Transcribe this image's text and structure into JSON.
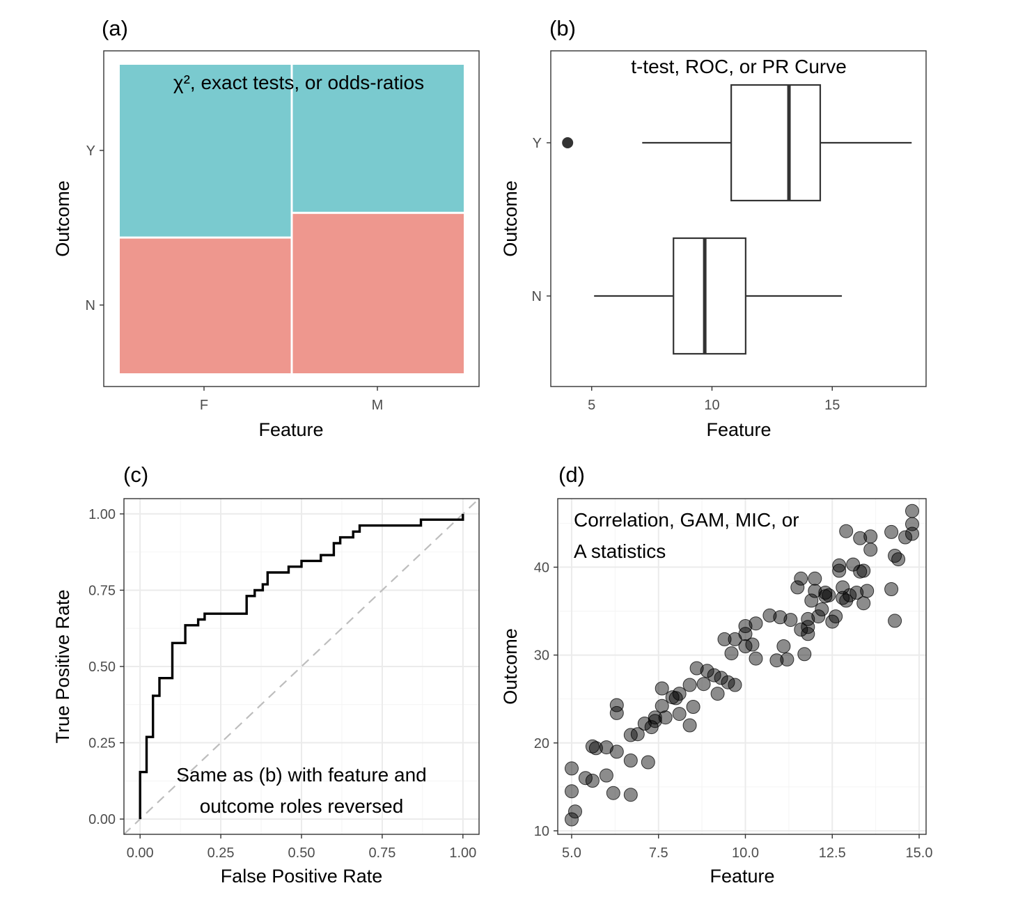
{
  "chart_data": [
    {
      "panel": "(a)",
      "type": "mosaic",
      "annotation": "χ², exact tests, or odds-ratios",
      "xlabel": "Feature",
      "ylabel": "Outcome",
      "categories": [
        "F",
        "M"
      ],
      "outcome_levels": [
        "N",
        "Y"
      ],
      "column_widths": [
        0.5,
        0.5
      ],
      "proportions": [
        {
          "feature": "F",
          "N": 0.44,
          "Y": 0.56
        },
        {
          "feature": "M",
          "N": 0.52,
          "Y": 0.48
        }
      ],
      "colors": {
        "N": "#ee978e",
        "Y": "#7acacf"
      }
    },
    {
      "panel": "(b)",
      "type": "boxplot",
      "annotation": "t-test, ROC, or PR Curve",
      "xlabel": "Feature",
      "ylabel": "Outcome",
      "xticks": [
        5,
        10,
        15
      ],
      "xlim": [
        3.3,
        18.9
      ],
      "boxes": [
        {
          "group": "N",
          "whisker_low": 5.1,
          "q1": 8.4,
          "median": 9.7,
          "q3": 11.4,
          "whisker_high": 15.4,
          "outliers": []
        },
        {
          "group": "Y",
          "whisker_low": 7.1,
          "q1": 10.8,
          "median": 13.2,
          "q3": 14.5,
          "whisker_high": 18.3,
          "outliers": [
            4.0
          ]
        }
      ]
    },
    {
      "panel": "(c)",
      "type": "line",
      "annotation_lines": [
        "Same as (b) with feature and",
        "outcome roles reversed"
      ],
      "xlabel": "False Positive Rate",
      "ylabel": "True Positive Rate",
      "xlim": [
        -0.05,
        1.05
      ],
      "ylim": [
        -0.05,
        1.05
      ],
      "xticks": [
        "0.00",
        "0.25",
        "0.50",
        "0.75",
        "1.00"
      ],
      "yticks": [
        "0.00",
        "0.25",
        "0.50",
        "0.75",
        "1.00"
      ],
      "reference_line": "diagonal dashed",
      "roc_steps": [
        [
          0.0,
          0.0
        ],
        [
          0.0,
          0.154
        ],
        [
          0.02,
          0.154
        ],
        [
          0.02,
          0.269
        ],
        [
          0.04,
          0.269
        ],
        [
          0.04,
          0.404
        ],
        [
          0.06,
          0.404
        ],
        [
          0.06,
          0.462
        ],
        [
          0.1,
          0.462
        ],
        [
          0.1,
          0.577
        ],
        [
          0.14,
          0.577
        ],
        [
          0.14,
          0.635
        ],
        [
          0.18,
          0.635
        ],
        [
          0.18,
          0.654
        ],
        [
          0.2,
          0.654
        ],
        [
          0.2,
          0.673
        ],
        [
          0.33,
          0.673
        ],
        [
          0.33,
          0.731
        ],
        [
          0.355,
          0.731
        ],
        [
          0.355,
          0.75
        ],
        [
          0.38,
          0.75
        ],
        [
          0.38,
          0.769
        ],
        [
          0.395,
          0.769
        ],
        [
          0.395,
          0.808
        ],
        [
          0.46,
          0.808
        ],
        [
          0.46,
          0.827
        ],
        [
          0.5,
          0.827
        ],
        [
          0.5,
          0.846
        ],
        [
          0.56,
          0.846
        ],
        [
          0.56,
          0.865
        ],
        [
          0.6,
          0.865
        ],
        [
          0.6,
          0.904
        ],
        [
          0.62,
          0.904
        ],
        [
          0.62,
          0.923
        ],
        [
          0.66,
          0.923
        ],
        [
          0.66,
          0.942
        ],
        [
          0.68,
          0.942
        ],
        [
          0.68,
          0.962
        ],
        [
          0.87,
          0.962
        ],
        [
          0.87,
          0.981
        ],
        [
          1.0,
          0.981
        ],
        [
          1.0,
          1.0
        ]
      ]
    },
    {
      "panel": "(d)",
      "type": "scatter",
      "annotation_lines": [
        "Correlation, GAM, MIC, or",
        "A statistics"
      ],
      "xlabel": "Feature",
      "ylabel": "Outcome",
      "xlim": [
        4.6,
        15.2
      ],
      "ylim": [
        9.6,
        47.8
      ],
      "xticks": [
        "5.0",
        "7.5",
        "10.0",
        "12.5",
        "15.0"
      ],
      "yticks": [
        "10",
        "20",
        "30",
        "40"
      ],
      "points": [
        [
          5.0,
          11.3
        ],
        [
          5.1,
          12.2
        ],
        [
          5.0,
          14.5
        ],
        [
          5.0,
          17.1
        ],
        [
          5.4,
          16.0
        ],
        [
          5.6,
          15.7
        ],
        [
          5.6,
          19.6
        ],
        [
          5.7,
          19.4
        ],
        [
          6.0,
          19.5
        ],
        [
          6.0,
          16.3
        ],
        [
          6.2,
          14.3
        ],
        [
          6.3,
          19.0
        ],
        [
          6.3,
          23.4
        ],
        [
          6.3,
          24.3
        ],
        [
          6.7,
          14.1
        ],
        [
          6.7,
          18.0
        ],
        [
          6.7,
          20.9
        ],
        [
          6.9,
          21.0
        ],
        [
          7.1,
          22.2
        ],
        [
          7.2,
          17.8
        ],
        [
          7.3,
          21.8
        ],
        [
          7.4,
          22.9
        ],
        [
          7.4,
          22.5
        ],
        [
          7.6,
          24.2
        ],
        [
          7.6,
          26.2
        ],
        [
          7.7,
          22.9
        ],
        [
          7.9,
          25.2
        ],
        [
          8.0,
          25.1
        ],
        [
          8.1,
          25.6
        ],
        [
          8.1,
          23.3
        ],
        [
          8.4,
          26.6
        ],
        [
          8.4,
          22.0
        ],
        [
          8.5,
          24.1
        ],
        [
          8.6,
          28.5
        ],
        [
          8.8,
          26.7
        ],
        [
          8.9,
          28.2
        ],
        [
          9.1,
          27.7
        ],
        [
          9.2,
          25.6
        ],
        [
          9.3,
          27.4
        ],
        [
          9.4,
          31.8
        ],
        [
          9.5,
          26.9
        ],
        [
          9.6,
          30.2
        ],
        [
          9.7,
          31.8
        ],
        [
          9.7,
          26.6
        ],
        [
          10.0,
          33.3
        ],
        [
          10.0,
          32.4
        ],
        [
          10.0,
          31.0
        ],
        [
          10.2,
          31.2
        ],
        [
          10.3,
          29.6
        ],
        [
          10.3,
          33.6
        ],
        [
          10.7,
          34.5
        ],
        [
          10.9,
          29.4
        ],
        [
          11.0,
          34.3
        ],
        [
          11.1,
          31.0
        ],
        [
          11.2,
          29.5
        ],
        [
          11.3,
          34.0
        ],
        [
          11.5,
          37.7
        ],
        [
          11.6,
          38.7
        ],
        [
          11.6,
          32.9
        ],
        [
          11.7,
          30.1
        ],
        [
          11.8,
          34.1
        ],
        [
          11.8,
          33.2
        ],
        [
          11.8,
          32.4
        ],
        [
          11.9,
          36.2
        ],
        [
          12.0,
          38.7
        ],
        [
          12.0,
          37.3
        ],
        [
          12.1,
          34.4
        ],
        [
          12.2,
          35.2
        ],
        [
          12.3,
          36.7
        ],
        [
          12.3,
          37.1
        ],
        [
          12.4,
          36.8
        ],
        [
          12.5,
          33.8
        ],
        [
          12.6,
          34.4
        ],
        [
          12.7,
          39.6
        ],
        [
          12.7,
          40.2
        ],
        [
          12.8,
          37.7
        ],
        [
          12.8,
          36.5
        ],
        [
          12.9,
          36.2
        ],
        [
          12.9,
          44.1
        ],
        [
          13.0,
          36.8
        ],
        [
          13.1,
          40.3
        ],
        [
          13.2,
          37.1
        ],
        [
          13.3,
          43.3
        ],
        [
          13.3,
          39.5
        ],
        [
          13.4,
          39.6
        ],
        [
          13.4,
          35.9
        ],
        [
          13.5,
          37.3
        ],
        [
          13.6,
          43.5
        ],
        [
          13.6,
          42.0
        ],
        [
          14.2,
          44.0
        ],
        [
          14.2,
          37.5
        ],
        [
          14.3,
          41.3
        ],
        [
          14.3,
          33.9
        ],
        [
          14.4,
          40.9
        ],
        [
          14.6,
          43.4
        ],
        [
          14.8,
          46.4
        ],
        [
          14.8,
          44.9
        ],
        [
          14.8,
          43.8
        ]
      ]
    }
  ]
}
